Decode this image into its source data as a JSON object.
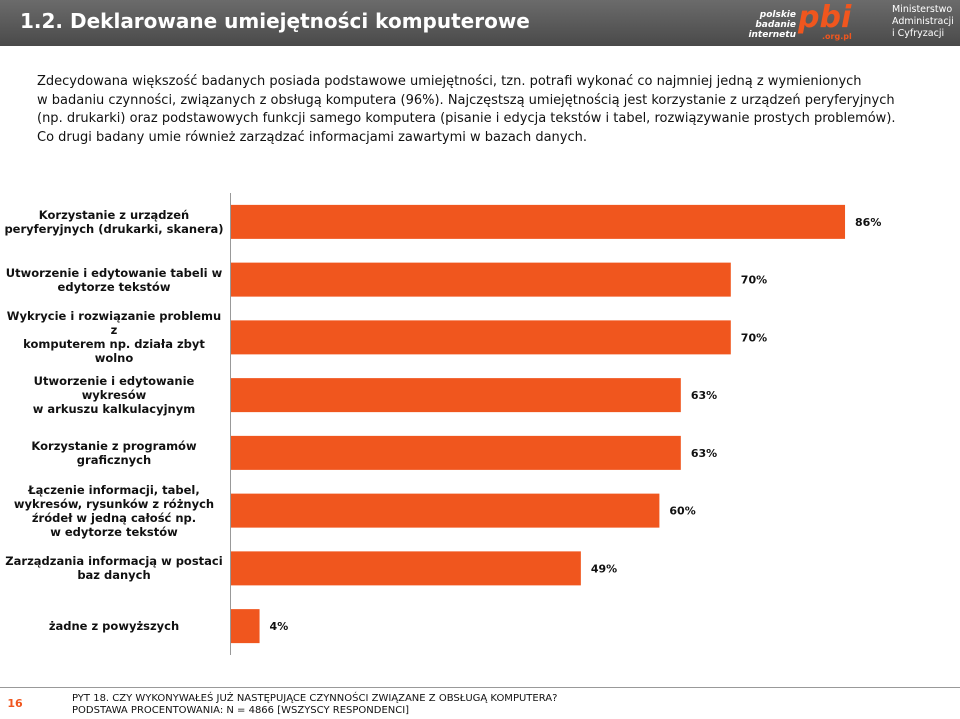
{
  "header": {
    "title": "1.2. Deklarowane umiejętności komputerowe",
    "logo_pbi": [
      "polskie",
      "badanie",
      "internetu",
      "pbi",
      ".org.pl"
    ],
    "logo_ministry": "Ministerstwo\nAdministracji\ni Cyfryzacji"
  },
  "intro": "Zdecydowana większość badanych posiada podstawowe umiejętności, tzn. potrafi wykonać co najmniej jedną z wymienionych\nw badaniu czynności, związanych z obsługą komputera (96%). Najczęstszą umiejętnością jest korzystanie z urządzeń peryferyjnych\n(np. drukarki) oraz podstawowych funkcji samego komputera (pisanie i edycja tekstów i tabel, rozwiązywanie prostych problemów).\nCo drugi badany umie również zarządzać informacjami zawartymi w bazach danych.",
  "chart_data": {
    "type": "hbar",
    "categories": [
      "Korzystanie z urządzeń\nperyferyjnych (drukarki, skanera)",
      "Utworzenie i edytowanie tabeli w\nedytorze tekstów",
      "Wykrycie i rozwiązanie problemu z\nkomputerem np. działa zbyt wolno",
      "Utworzenie i edytowanie wykresów\nw arkuszu kalkulacyjnym",
      "Korzystanie z programów\ngraficznych",
      "Łączenie informacji, tabel,\nwykresów, rysunków z różnych\nźródeł w jedną całość np.\nw edytorze tekstów",
      "Zarządzania informacją w postaci\nbaz danych",
      "żadne z powyższych"
    ],
    "values": [
      86,
      70,
      70,
      63,
      63,
      60,
      49,
      4
    ],
    "value_labels": [
      "86%",
      "70%",
      "70%",
      "63%",
      "63%",
      "60%",
      "49%",
      "4%"
    ],
    "color": "#f0561e",
    "xlim": [
      0,
      100
    ]
  },
  "footer": {
    "page": "16",
    "question": "PYT 18. CZY WYKONYWAŁEŚ JUŻ NASTĘPUJĄCE CZYNNOŚCI ZWIĄZANE Z OBSŁUGĄ KOMPUTERA?",
    "base": "PODSTAWA PROCENTOWANIA: N = 4866 [WSZYSCY RESPONDENCI]"
  }
}
